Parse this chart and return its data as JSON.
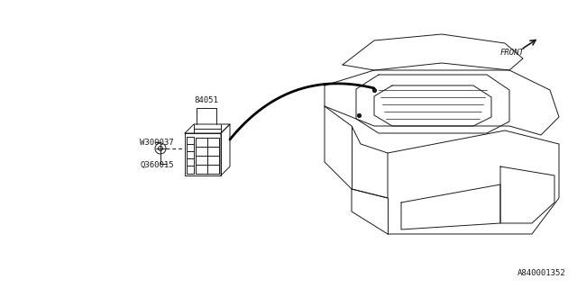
{
  "bg_color": "#ffffff",
  "line_color": "#1a1a1a",
  "label_84051": "84051",
  "label_W300037": "W300037",
  "label_Q360015": "Q360015",
  "label_FRONT": "FRONT",
  "label_ref": "A840001352",
  "lw_thin": 0.7,
  "lw_thick": 1.5
}
